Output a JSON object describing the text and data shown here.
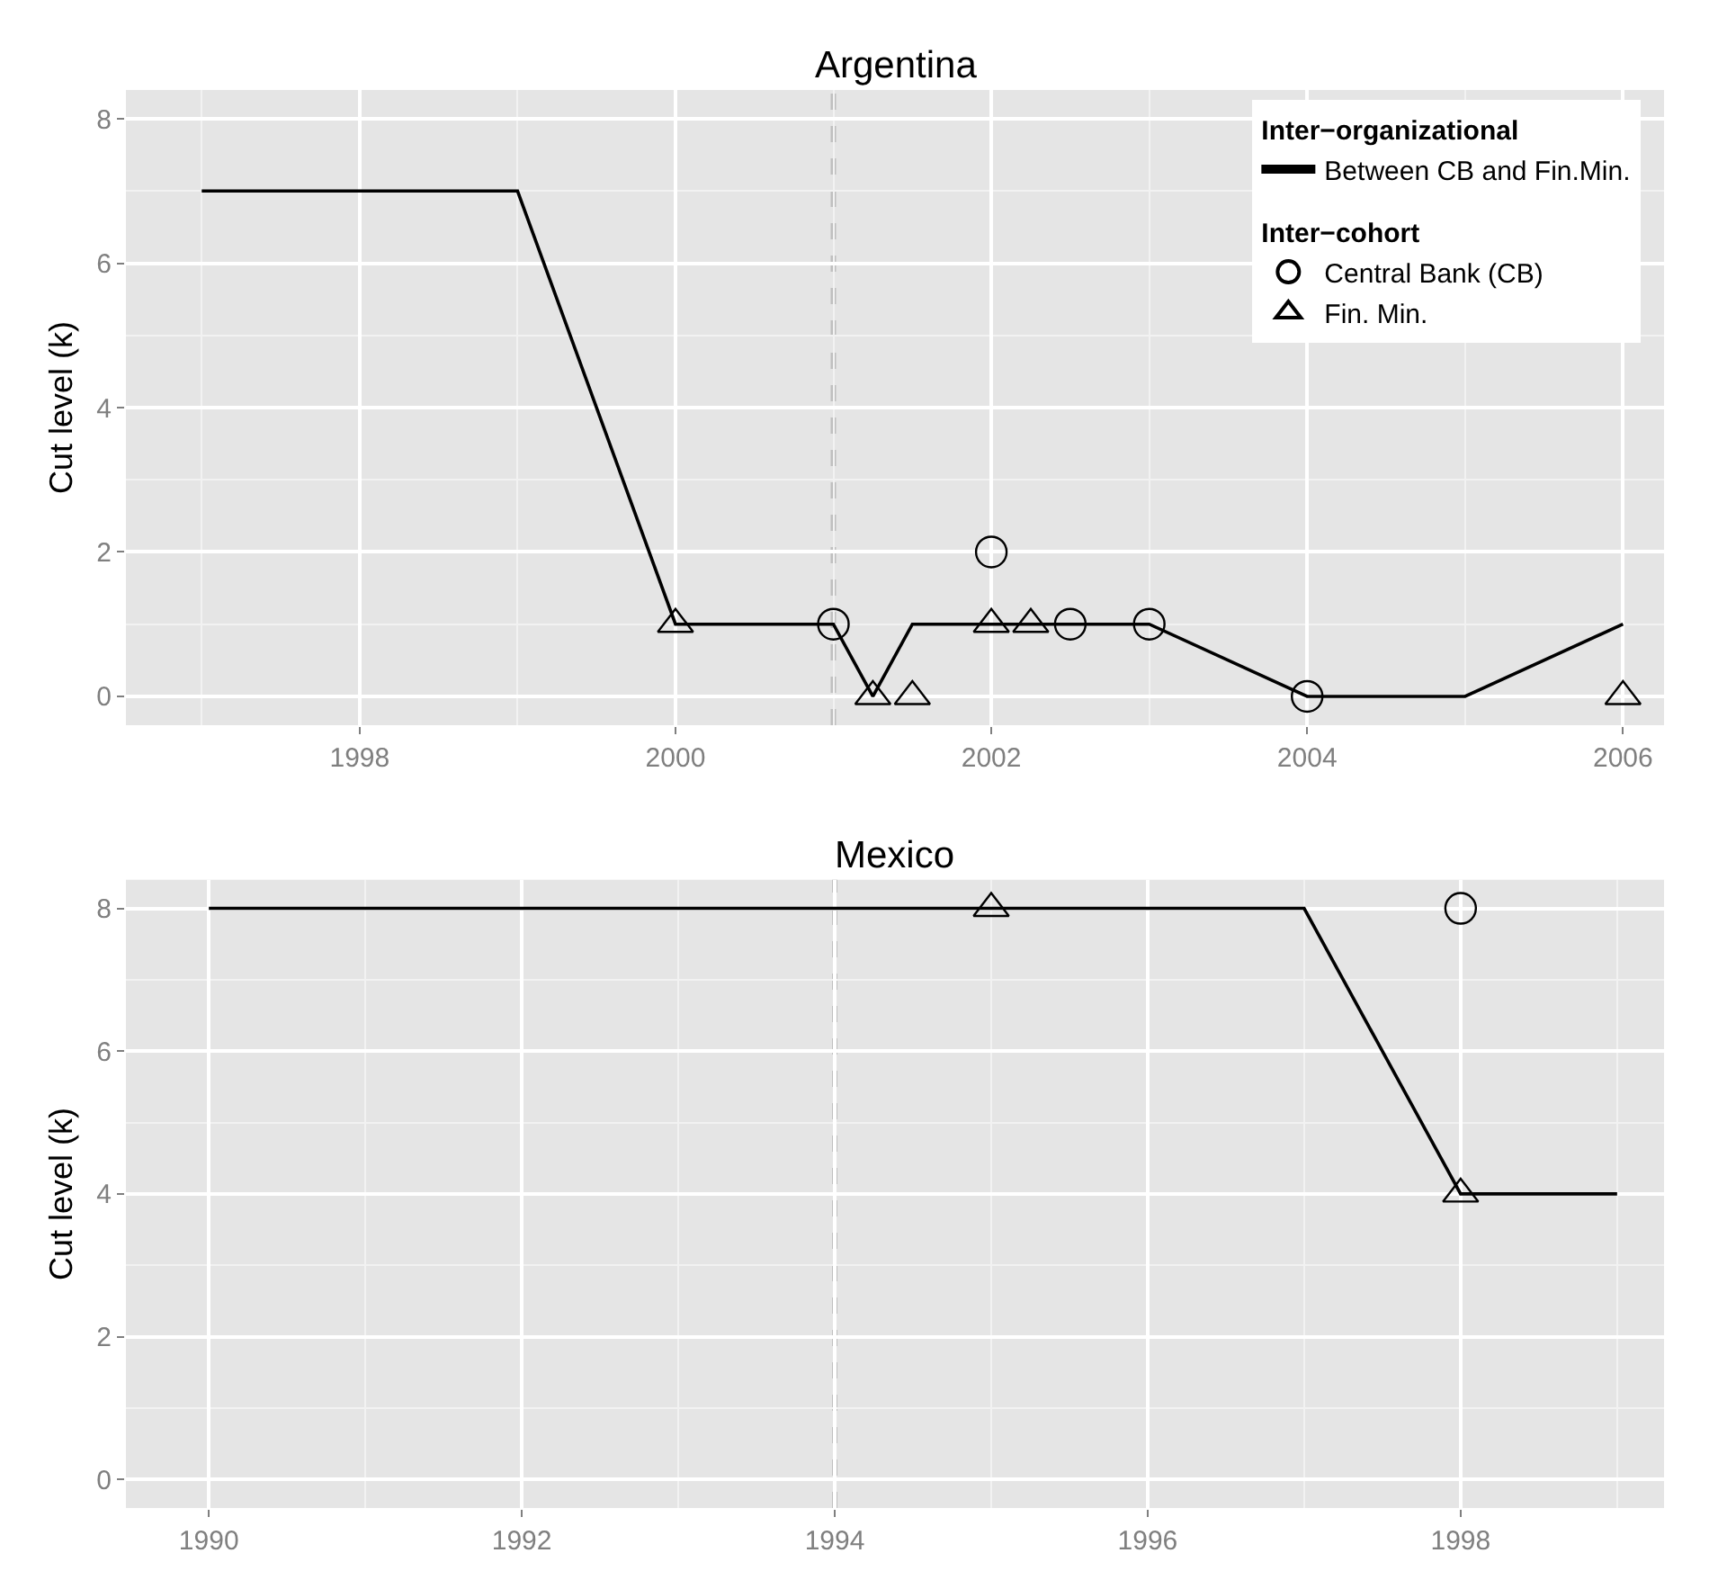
{
  "chart_data": [
    {
      "type": "line",
      "title": "Argentina",
      "ylabel": "Cut level (k)",
      "xlim": [
        1996.52,
        2006.26
      ],
      "xticks": [
        1998,
        2000,
        2002,
        2004,
        2006
      ],
      "ylim": [
        -0.4,
        8.4
      ],
      "yticks": [
        0,
        2,
        4,
        6,
        8
      ],
      "grid": true,
      "legend": "top right",
      "legend_title": [
        "Inter−organizational",
        "Inter−cohort"
      ],
      "ref_lines": [
        {
          "axis": "x",
          "value": 2001,
          "color": "#bfbfbf",
          "line_style": "dashed"
        }
      ],
      "series": [
        {
          "type": "line",
          "name": "Between CB and Fin.Min.",
          "color": "#000000",
          "marker": "none",
          "line_style": "solid",
          "x": [
            1997,
            1999,
            2000,
            2001,
            2001.25,
            2001.5,
            2003,
            2004,
            2005,
            2006
          ],
          "values": [
            7,
            7,
            1,
            1,
            0,
            1,
            1,
            0,
            0,
            1
          ]
        },
        {
          "type": "scatter",
          "name": "Central Bank (CB)",
          "color": "#000000",
          "marker": "circle",
          "x": [
            2001,
            2002,
            2002.5,
            2003,
            2004
          ],
          "values": [
            1,
            2,
            1,
            1,
            0
          ]
        },
        {
          "type": "scatter",
          "name": "Fin. Min.",
          "color": "#000000",
          "marker": "triangle",
          "x": [
            2000,
            2001.25,
            2001.5,
            2002,
            2002.25,
            2006
          ],
          "values": [
            1,
            0,
            0,
            1,
            1,
            0
          ]
        }
      ]
    },
    {
      "type": "line",
      "title": "Mexico",
      "ylabel": "Cut level (k)",
      "xlim": [
        1989.47,
        1999.3
      ],
      "xticks": [
        1990,
        1992,
        1994,
        1996,
        1998
      ],
      "ylim": [
        -0.4,
        8.4
      ],
      "yticks": [
        0,
        2,
        4,
        6,
        8
      ],
      "grid": true,
      "legend": false,
      "ref_lines": [
        {
          "axis": "x",
          "value": 1994,
          "color": "#bfbfbf",
          "line_style": "dashed"
        }
      ],
      "series": [
        {
          "type": "line",
          "color": "#000000",
          "marker": "none",
          "line_style": "solid",
          "x": [
            1990,
            1997,
            1998,
            1999
          ],
          "values": [
            8,
            8,
            4,
            4
          ]
        },
        {
          "type": "scatter",
          "color": "#000000",
          "marker": "circle",
          "x": [
            1998
          ],
          "values": [
            8
          ]
        },
        {
          "type": "scatter",
          "color": "#000000",
          "marker": "triangle",
          "x": [
            1995,
            1998
          ],
          "values": [
            8,
            4
          ]
        }
      ]
    }
  ]
}
